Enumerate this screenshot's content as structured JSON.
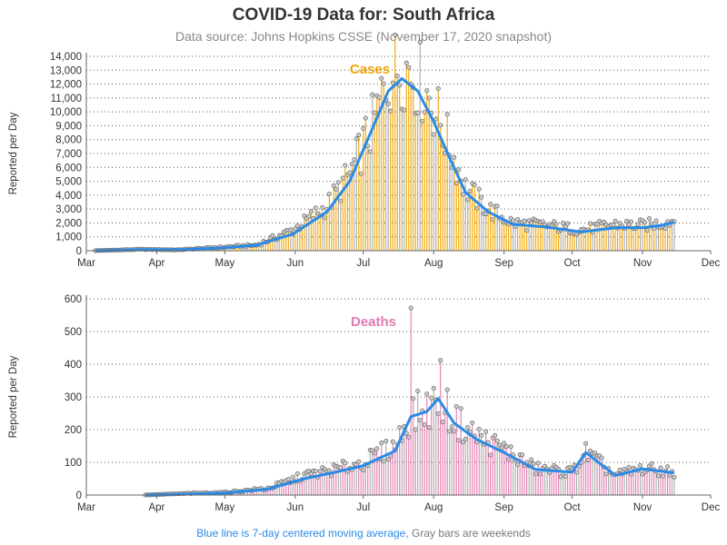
{
  "title": "COVID-19 Data for: South Africa",
  "subtitle": "Data source: Johns Hopkins CSSE (November 17, 2020 snapshot)",
  "footnote": {
    "blue_part": "Blue line is 7-day centered moving average,",
    "gray_part": "Gray bars are weekends"
  },
  "colors": {
    "cases": "#f0a500",
    "deaths": "#e07ab0",
    "moving_average": "#2a8ae6",
    "marker_fill": "#cccccc",
    "grid": "#555555"
  },
  "chart_data": [
    {
      "type": "bar",
      "name": "Cases",
      "label": "Cases",
      "ylabel": "Reported per Day",
      "ylim": [
        0,
        14000
      ],
      "yticks": [
        0,
        1000,
        2000,
        3000,
        4000,
        5000,
        6000,
        7000,
        8000,
        9000,
        10000,
        11000,
        12000,
        13000,
        14000
      ],
      "ytick_labels": [
        "0",
        "1,000",
        "2,000",
        "3,000",
        "4,000",
        "5,000",
        "6,000",
        "7,000",
        "8,000",
        "9,000",
        "10,000",
        "11,000",
        "12,000",
        "13,000",
        "14,000"
      ],
      "xlim": [
        "2020-03-01",
        "2020-12-01"
      ],
      "xticks": [
        "2020-03-01",
        "2020-04-01",
        "2020-05-01",
        "2020-06-01",
        "2020-07-01",
        "2020-08-01",
        "2020-09-01",
        "2020-10-01",
        "2020-11-01",
        "2020-12-01"
      ],
      "xtick_labels": [
        "Mar",
        "Apr",
        "May",
        "Jun",
        "Jul",
        "Aug",
        "Sep",
        "Oct",
        "Nov",
        "Dec"
      ],
      "grid": "horizontal dotted",
      "daily_keypoints": [
        [
          "2020-03-05",
          0
        ],
        [
          "2020-03-25",
          100
        ],
        [
          "2020-04-10",
          60
        ],
        [
          "2020-04-30",
          250
        ],
        [
          "2020-05-15",
          400
        ],
        [
          "2020-05-31",
          1500
        ],
        [
          "2020-06-15",
          3200
        ],
        [
          "2020-06-25",
          5500
        ],
        [
          "2020-07-05",
          9000
        ],
        [
          "2020-07-12",
          12500
        ],
        [
          "2020-07-18",
          13500
        ],
        [
          "2020-07-25",
          12500
        ],
        [
          "2020-08-01",
          10500
        ],
        [
          "2020-08-08",
          7500
        ],
        [
          "2020-08-15",
          4500
        ],
        [
          "2020-08-25",
          3000
        ],
        [
          "2020-09-05",
          2000
        ],
        [
          "2020-09-20",
          1800
        ],
        [
          "2020-10-05",
          1500
        ],
        [
          "2020-10-20",
          1900
        ],
        [
          "2020-11-01",
          1800
        ],
        [
          "2020-11-10",
          2000
        ],
        [
          "2020-11-15",
          2200
        ]
      ],
      "moving_average_keypoints": [
        [
          "2020-03-05",
          0
        ],
        [
          "2020-03-25",
          80
        ],
        [
          "2020-04-10",
          70
        ],
        [
          "2020-04-30",
          200
        ],
        [
          "2020-05-15",
          400
        ],
        [
          "2020-05-31",
          1200
        ],
        [
          "2020-06-15",
          2800
        ],
        [
          "2020-06-25",
          5000
        ],
        [
          "2020-07-05",
          8800
        ],
        [
          "2020-07-12",
          11500
        ],
        [
          "2020-07-18",
          12400
        ],
        [
          "2020-07-25",
          11500
        ],
        [
          "2020-08-01",
          9300
        ],
        [
          "2020-08-08",
          6700
        ],
        [
          "2020-08-15",
          4200
        ],
        [
          "2020-08-25",
          2800
        ],
        [
          "2020-09-05",
          1900
        ],
        [
          "2020-09-20",
          1700
        ],
        [
          "2020-10-05",
          1350
        ],
        [
          "2020-10-20",
          1650
        ],
        [
          "2020-11-01",
          1650
        ],
        [
          "2020-11-10",
          1850
        ],
        [
          "2020-11-15",
          2050
        ]
      ]
    },
    {
      "type": "bar",
      "name": "Deaths",
      "label": "Deaths",
      "ylabel": "Reported per Day",
      "ylim": [
        0,
        600
      ],
      "yticks": [
        0,
        100,
        200,
        300,
        400,
        500,
        600
      ],
      "ytick_labels": [
        "0",
        "100",
        "200",
        "300",
        "400",
        "500",
        "600"
      ],
      "xlim": [
        "2020-03-01",
        "2020-12-01"
      ],
      "xticks": [
        "2020-03-01",
        "2020-04-01",
        "2020-05-01",
        "2020-06-01",
        "2020-07-01",
        "2020-08-01",
        "2020-09-01",
        "2020-10-01",
        "2020-11-01",
        "2020-12-01"
      ],
      "xtick_labels": [
        "Mar",
        "Apr",
        "May",
        "Jun",
        "Jul",
        "Aug",
        "Sep",
        "Oct",
        "Nov",
        "Dec"
      ],
      "grid": "horizontal dotted",
      "daily_keypoints": [
        [
          "2020-03-27",
          0
        ],
        [
          "2020-04-15",
          5
        ],
        [
          "2020-05-01",
          8
        ],
        [
          "2020-05-20",
          20
        ],
        [
          "2020-06-05",
          60
        ],
        [
          "2020-06-20",
          80
        ],
        [
          "2020-07-01",
          100
        ],
        [
          "2020-07-15",
          150
        ],
        [
          "2020-07-22",
          250
        ],
        [
          "2020-07-29",
          260
        ],
        [
          "2020-08-03",
          300
        ],
        [
          "2020-08-10",
          230
        ],
        [
          "2020-08-20",
          180
        ],
        [
          "2020-09-01",
          140
        ],
        [
          "2020-09-15",
          80
        ],
        [
          "2020-10-01",
          70
        ],
        [
          "2020-10-07",
          130
        ],
        [
          "2020-10-20",
          60
        ],
        [
          "2020-11-01",
          80
        ],
        [
          "2020-11-15",
          70
        ]
      ],
      "daily_outliers": [
        [
          "2020-07-22",
          572
        ],
        [
          "2020-08-04",
          412
        ]
      ],
      "moving_average_keypoints": [
        [
          "2020-03-27",
          0
        ],
        [
          "2020-04-15",
          3
        ],
        [
          "2020-05-01",
          6
        ],
        [
          "2020-05-20",
          18
        ],
        [
          "2020-06-05",
          50
        ],
        [
          "2020-06-20",
          72
        ],
        [
          "2020-07-01",
          90
        ],
        [
          "2020-07-15",
          135
        ],
        [
          "2020-07-22",
          240
        ],
        [
          "2020-07-29",
          255
        ],
        [
          "2020-08-03",
          295
        ],
        [
          "2020-08-10",
          220
        ],
        [
          "2020-08-20",
          170
        ],
        [
          "2020-09-01",
          130
        ],
        [
          "2020-09-15",
          78
        ],
        [
          "2020-10-01",
          70
        ],
        [
          "2020-10-07",
          130
        ],
        [
          "2020-10-20",
          60
        ],
        [
          "2020-11-01",
          80
        ],
        [
          "2020-11-15",
          68
        ]
      ]
    }
  ]
}
